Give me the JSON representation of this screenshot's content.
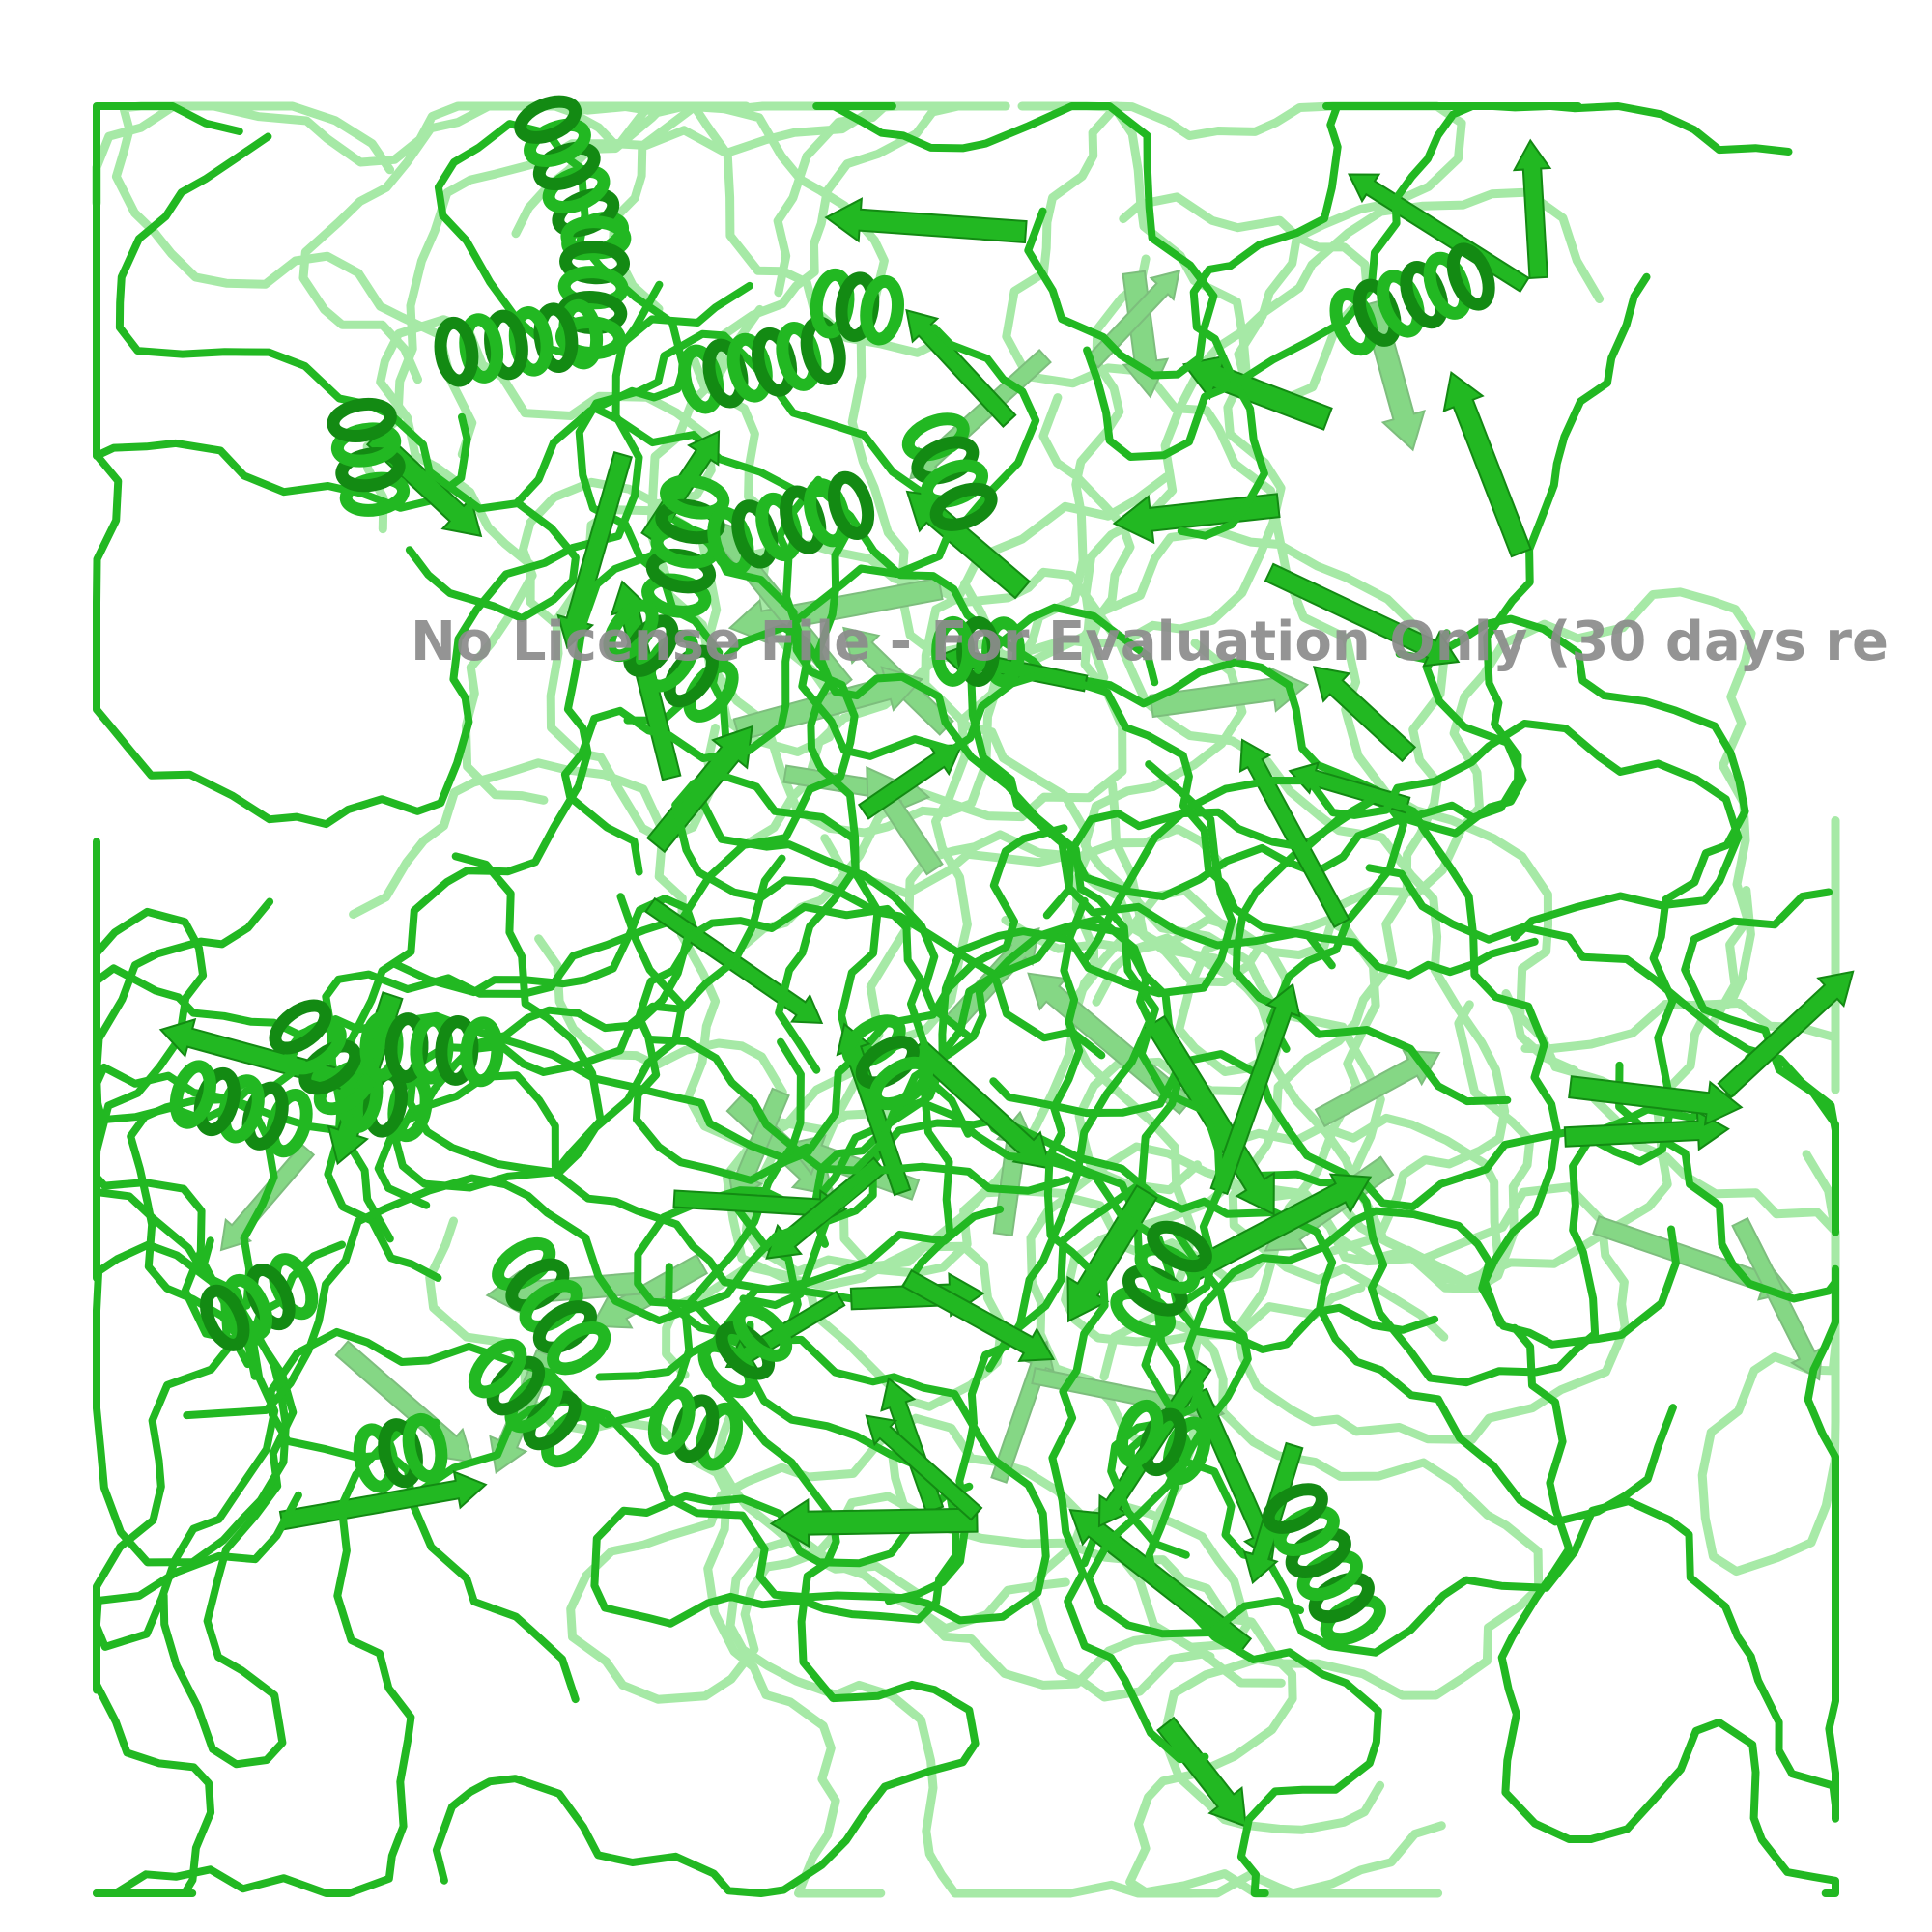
{
  "viewer": {
    "watermark": "No License File - For Evaluation Only (30 days re",
    "colors": {
      "background": "#ffffff",
      "ribbon_front": "#22b822",
      "ribbon_dark": "#138a13",
      "ribbon_back": "#5fd85f",
      "watermark": "#8c8c8c"
    },
    "representation": "cartoon"
  }
}
